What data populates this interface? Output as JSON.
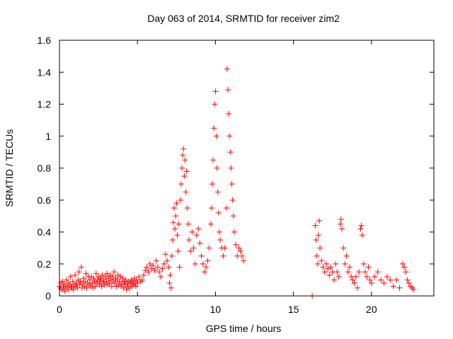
{
  "chart_data": {
    "type": "scatter",
    "title": "Day 063 of 2014, SRMTID for receiver zim2",
    "xlabel": "GPS time / hours",
    "ylabel": "SRMTID / TECUs",
    "xlim": [
      0,
      24
    ],
    "ylim": [
      0,
      1.6
    ],
    "x_ticks": [
      0,
      5,
      10,
      15,
      20
    ],
    "x_tick_labels": [
      "0",
      "5",
      "10",
      "15",
      "20"
    ],
    "y_ticks": [
      0,
      0.2,
      0.4,
      0.6,
      0.8,
      1.0,
      1.2,
      1.4,
      1.6
    ],
    "y_tick_labels": [
      "0",
      "0.2",
      "0.4",
      "0.6",
      "0.8",
      "1",
      "1.2",
      "1.4",
      "1.6"
    ],
    "marker": "+",
    "color": "#ff0000",
    "grid": false,
    "legend": "none",
    "series": [
      {
        "name": "SRMTID",
        "points": [
          [
            0.0,
            0.06
          ],
          [
            0.05,
            0.05
          ],
          [
            0.1,
            0.08
          ],
          [
            0.15,
            0.04
          ],
          [
            0.2,
            0.09
          ],
          [
            0.25,
            0.05
          ],
          [
            0.3,
            0.07
          ],
          [
            0.35,
            0.03
          ],
          [
            0.4,
            0.06
          ],
          [
            0.45,
            0.1
          ],
          [
            0.5,
            0.05
          ],
          [
            0.55,
            0.08
          ],
          [
            0.6,
            0.04
          ],
          [
            0.65,
            0.07
          ],
          [
            0.7,
            0.12
          ],
          [
            0.75,
            0.06
          ],
          [
            0.8,
            0.05
          ],
          [
            0.85,
            0.09
          ],
          [
            0.9,
            0.04
          ],
          [
            0.95,
            0.07
          ],
          [
            1.0,
            0.13
          ],
          [
            1.05,
            0.06
          ],
          [
            1.1,
            0.08
          ],
          [
            1.15,
            0.05
          ],
          [
            1.2,
            0.1
          ],
          [
            1.25,
            0.15
          ],
          [
            1.3,
            0.07
          ],
          [
            1.35,
            0.09
          ],
          [
            1.4,
            0.18
          ],
          [
            1.45,
            0.05
          ],
          [
            1.5,
            0.08
          ],
          [
            1.55,
            0.11
          ],
          [
            1.6,
            0.06
          ],
          [
            1.65,
            0.09
          ],
          [
            1.7,
            0.14
          ],
          [
            1.75,
            0.05
          ],
          [
            1.8,
            0.08
          ],
          [
            1.85,
            0.12
          ],
          [
            1.9,
            0.07
          ],
          [
            1.95,
            0.1
          ],
          [
            2.0,
            0.06
          ],
          [
            2.05,
            0.12
          ],
          [
            2.1,
            0.08
          ],
          [
            2.15,
            0.05
          ],
          [
            2.2,
            0.11
          ],
          [
            2.25,
            0.09
          ],
          [
            2.3,
            0.06
          ],
          [
            2.35,
            0.14
          ],
          [
            2.4,
            0.08
          ],
          [
            2.45,
            0.1
          ],
          [
            2.5,
            0.12
          ],
          [
            2.55,
            0.07
          ],
          [
            2.6,
            0.09
          ],
          [
            2.65,
            0.11
          ],
          [
            2.7,
            0.06
          ],
          [
            2.75,
            0.13
          ],
          [
            2.8,
            0.08
          ],
          [
            2.85,
            0.1
          ],
          [
            2.9,
            0.07
          ],
          [
            2.95,
            0.12
          ],
          [
            3.0,
            0.09
          ],
          [
            3.05,
            0.14
          ],
          [
            3.1,
            0.07
          ],
          [
            3.15,
            0.11
          ],
          [
            3.2,
            0.08
          ],
          [
            3.25,
            0.13
          ],
          [
            3.3,
            0.1
          ],
          [
            3.35,
            0.06
          ],
          [
            3.4,
            0.12
          ],
          [
            3.45,
            0.09
          ],
          [
            3.5,
            0.15
          ],
          [
            3.55,
            0.08
          ],
          [
            3.6,
            0.11
          ],
          [
            3.65,
            0.06
          ],
          [
            3.7,
            0.1
          ],
          [
            3.75,
            0.13
          ],
          [
            3.8,
            0.07
          ],
          [
            3.85,
            0.09
          ],
          [
            3.9,
            0.12
          ],
          [
            3.95,
            0.06
          ],
          [
            4.0,
            0.08
          ],
          [
            4.05,
            0.11
          ],
          [
            4.1,
            0.05
          ],
          [
            4.15,
            0.09
          ],
          [
            4.2,
            0.07
          ],
          [
            4.25,
            0.1
          ],
          [
            4.3,
            0.04
          ],
          [
            4.35,
            0.08
          ],
          [
            4.4,
            0.06
          ],
          [
            4.45,
            0.09
          ],
          [
            4.5,
            0.05
          ],
          [
            4.55,
            0.08
          ],
          [
            4.6,
            0.1
          ],
          [
            4.65,
            0.06
          ],
          [
            4.7,
            0.09
          ],
          [
            4.75,
            0.07
          ],
          [
            4.8,
            0.11
          ],
          [
            4.85,
            0.08
          ],
          [
            4.9,
            0.06
          ],
          [
            4.95,
            0.1
          ],
          [
            5.0,
            0.08
          ],
          [
            5.1,
            0.12
          ],
          [
            5.2,
            0.09
          ],
          [
            5.3,
            0.1
          ],
          [
            5.4,
            0.13
          ],
          [
            5.5,
            0.16
          ],
          [
            5.6,
            0.18
          ],
          [
            5.7,
            0.15
          ],
          [
            5.8,
            0.2
          ],
          [
            5.9,
            0.17
          ],
          [
            6.0,
            0.19
          ],
          [
            6.1,
            0.16
          ],
          [
            6.2,
            0.22
          ],
          [
            6.3,
            0.18
          ],
          [
            6.4,
            0.15
          ],
          [
            6.5,
            0.12
          ],
          [
            6.6,
            0.17
          ],
          [
            6.7,
            0.2
          ],
          [
            6.8,
            0.26
          ],
          [
            6.9,
            0.22
          ],
          [
            7.0,
            0.18
          ],
          [
            7.05,
            0.08
          ],
          [
            7.1,
            0.13
          ],
          [
            7.15,
            0.05
          ],
          [
            7.2,
            0.25
          ],
          [
            7.25,
            0.35
          ],
          [
            7.3,
            0.46
          ],
          [
            7.35,
            0.55
          ],
          [
            7.4,
            0.42
          ],
          [
            7.45,
            0.5
          ],
          [
            7.5,
            0.58
          ],
          [
            7.55,
            0.38
          ],
          [
            7.6,
            0.28
          ],
          [
            7.65,
            0.45
          ],
          [
            7.7,
            0.18
          ],
          [
            7.75,
            0.6
          ],
          [
            7.8,
            0.7
          ],
          [
            7.85,
            0.8
          ],
          [
            7.9,
            0.88
          ],
          [
            7.95,
            0.92
          ],
          [
            8.0,
            0.75
          ],
          [
            8.05,
            0.85
          ],
          [
            8.1,
            0.65
          ],
          [
            8.15,
            0.78
          ],
          [
            8.2,
            0.55
          ],
          [
            8.25,
            0.45
          ],
          [
            8.3,
            0.35
          ],
          [
            8.4,
            0.28
          ],
          [
            8.5,
            0.4
          ],
          [
            8.6,
            0.3
          ],
          [
            8.7,
            0.2
          ],
          [
            8.8,
            0.38
          ],
          [
            8.9,
            0.42
          ],
          [
            9.0,
            0.33
          ],
          [
            9.1,
            0.25
          ],
          [
            9.2,
            0.2
          ],
          [
            9.3,
            0.15
          ],
          [
            9.4,
            0.18
          ],
          [
            9.5,
            0.22
          ],
          [
            9.6,
            0.3
          ],
          [
            9.7,
            0.45
          ],
          [
            9.75,
            0.55
          ],
          [
            9.8,
            0.7
          ],
          [
            9.85,
            0.85
          ],
          [
            9.9,
            1.05
          ],
          [
            9.95,
            1.2
          ],
          [
            10.0,
            1.28
          ],
          [
            10.05,
            1.0
          ],
          [
            10.1,
            0.8
          ],
          [
            10.15,
            0.65
          ],
          [
            10.2,
            0.52
          ],
          [
            10.25,
            0.4
          ],
          [
            10.3,
            0.35
          ],
          [
            10.4,
            0.3
          ],
          [
            10.5,
            0.25
          ],
          [
            10.6,
            0.3
          ],
          [
            10.7,
            0.55
          ],
          [
            10.75,
            1.42
          ],
          [
            10.8,
            1.29
          ],
          [
            10.85,
            1.14
          ],
          [
            10.9,
            1.0
          ],
          [
            10.95,
            0.9
          ],
          [
            11.0,
            0.8
          ],
          [
            11.05,
            0.7
          ],
          [
            11.1,
            0.6
          ],
          [
            11.15,
            0.5
          ],
          [
            11.2,
            0.4
          ],
          [
            11.3,
            0.32
          ],
          [
            11.4,
            0.25
          ],
          [
            11.5,
            0.3
          ],
          [
            11.6,
            0.28
          ],
          [
            11.7,
            0.25
          ],
          [
            11.8,
            0.22
          ],
          [
            16.2,
            0.0
          ],
          [
            16.4,
            0.44
          ],
          [
            16.45,
            0.35
          ],
          [
            16.5,
            0.25
          ],
          [
            16.55,
            0.2
          ],
          [
            16.6,
            0.38
          ],
          [
            16.65,
            0.47
          ],
          [
            16.7,
            0.3
          ],
          [
            16.8,
            0.22
          ],
          [
            16.9,
            0.18
          ],
          [
            17.0,
            0.15
          ],
          [
            17.1,
            0.2
          ],
          [
            17.2,
            0.17
          ],
          [
            17.3,
            0.13
          ],
          [
            17.4,
            0.18
          ],
          [
            17.5,
            0.15
          ],
          [
            17.6,
            0.1
          ],
          [
            17.7,
            0.2
          ],
          [
            17.8,
            0.15
          ],
          [
            17.9,
            0.12
          ],
          [
            18.0,
            0.45
          ],
          [
            18.05,
            0.48
          ],
          [
            18.1,
            0.42
          ],
          [
            18.2,
            0.3
          ],
          [
            18.3,
            0.2
          ],
          [
            18.4,
            0.25
          ],
          [
            18.5,
            0.15
          ],
          [
            18.6,
            0.18
          ],
          [
            18.7,
            0.12
          ],
          [
            18.8,
            0.1
          ],
          [
            18.9,
            0.08
          ],
          [
            19.0,
            0.12
          ],
          [
            19.1,
            0.05
          ],
          [
            19.2,
            0.15
          ],
          [
            19.3,
            0.42
          ],
          [
            19.35,
            0.44
          ],
          [
            19.4,
            0.38
          ],
          [
            19.5,
            0.2
          ],
          [
            19.6,
            0.15
          ],
          [
            19.7,
            0.12
          ],
          [
            19.8,
            0.18
          ],
          [
            19.9,
            0.1
          ],
          [
            20.0,
            0.08
          ],
          [
            20.2,
            0.12
          ],
          [
            20.4,
            0.15
          ],
          [
            20.6,
            0.1
          ],
          [
            20.8,
            0.08
          ],
          [
            21.0,
            0.12
          ],
          [
            21.2,
            0.1
          ],
          [
            21.4,
            0.06
          ],
          [
            21.6,
            0.1
          ],
          [
            21.8,
            0.05
          ],
          [
            22.0,
            0.2
          ],
          [
            22.1,
            0.18
          ],
          [
            22.2,
            0.15
          ],
          [
            22.3,
            0.1
          ],
          [
            22.4,
            0.08
          ],
          [
            22.5,
            0.06
          ],
          [
            22.6,
            0.05
          ],
          [
            22.7,
            0.04
          ]
        ]
      }
    ]
  }
}
